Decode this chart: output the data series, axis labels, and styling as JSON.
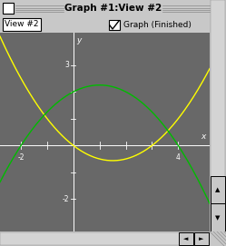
{
  "title": "Graph #1:View #2",
  "toolbar_left": "View #2",
  "toolbar_right": "Graph (Finished)",
  "frame_color": "#c8c8c8",
  "title_bar_color": "#c8c8c8",
  "plot_bg": "#686868",
  "axis_color": "#ffffff",
  "yellow_color": "#ffff00",
  "green_color": "#00bb00",
  "xlim": [
    -2.8,
    5.2
  ],
  "ylim": [
    -3.2,
    4.2
  ],
  "xlabel": "x",
  "ylabel": "y",
  "fig_width": 2.49,
  "fig_height": 2.71,
  "dpi": 100
}
